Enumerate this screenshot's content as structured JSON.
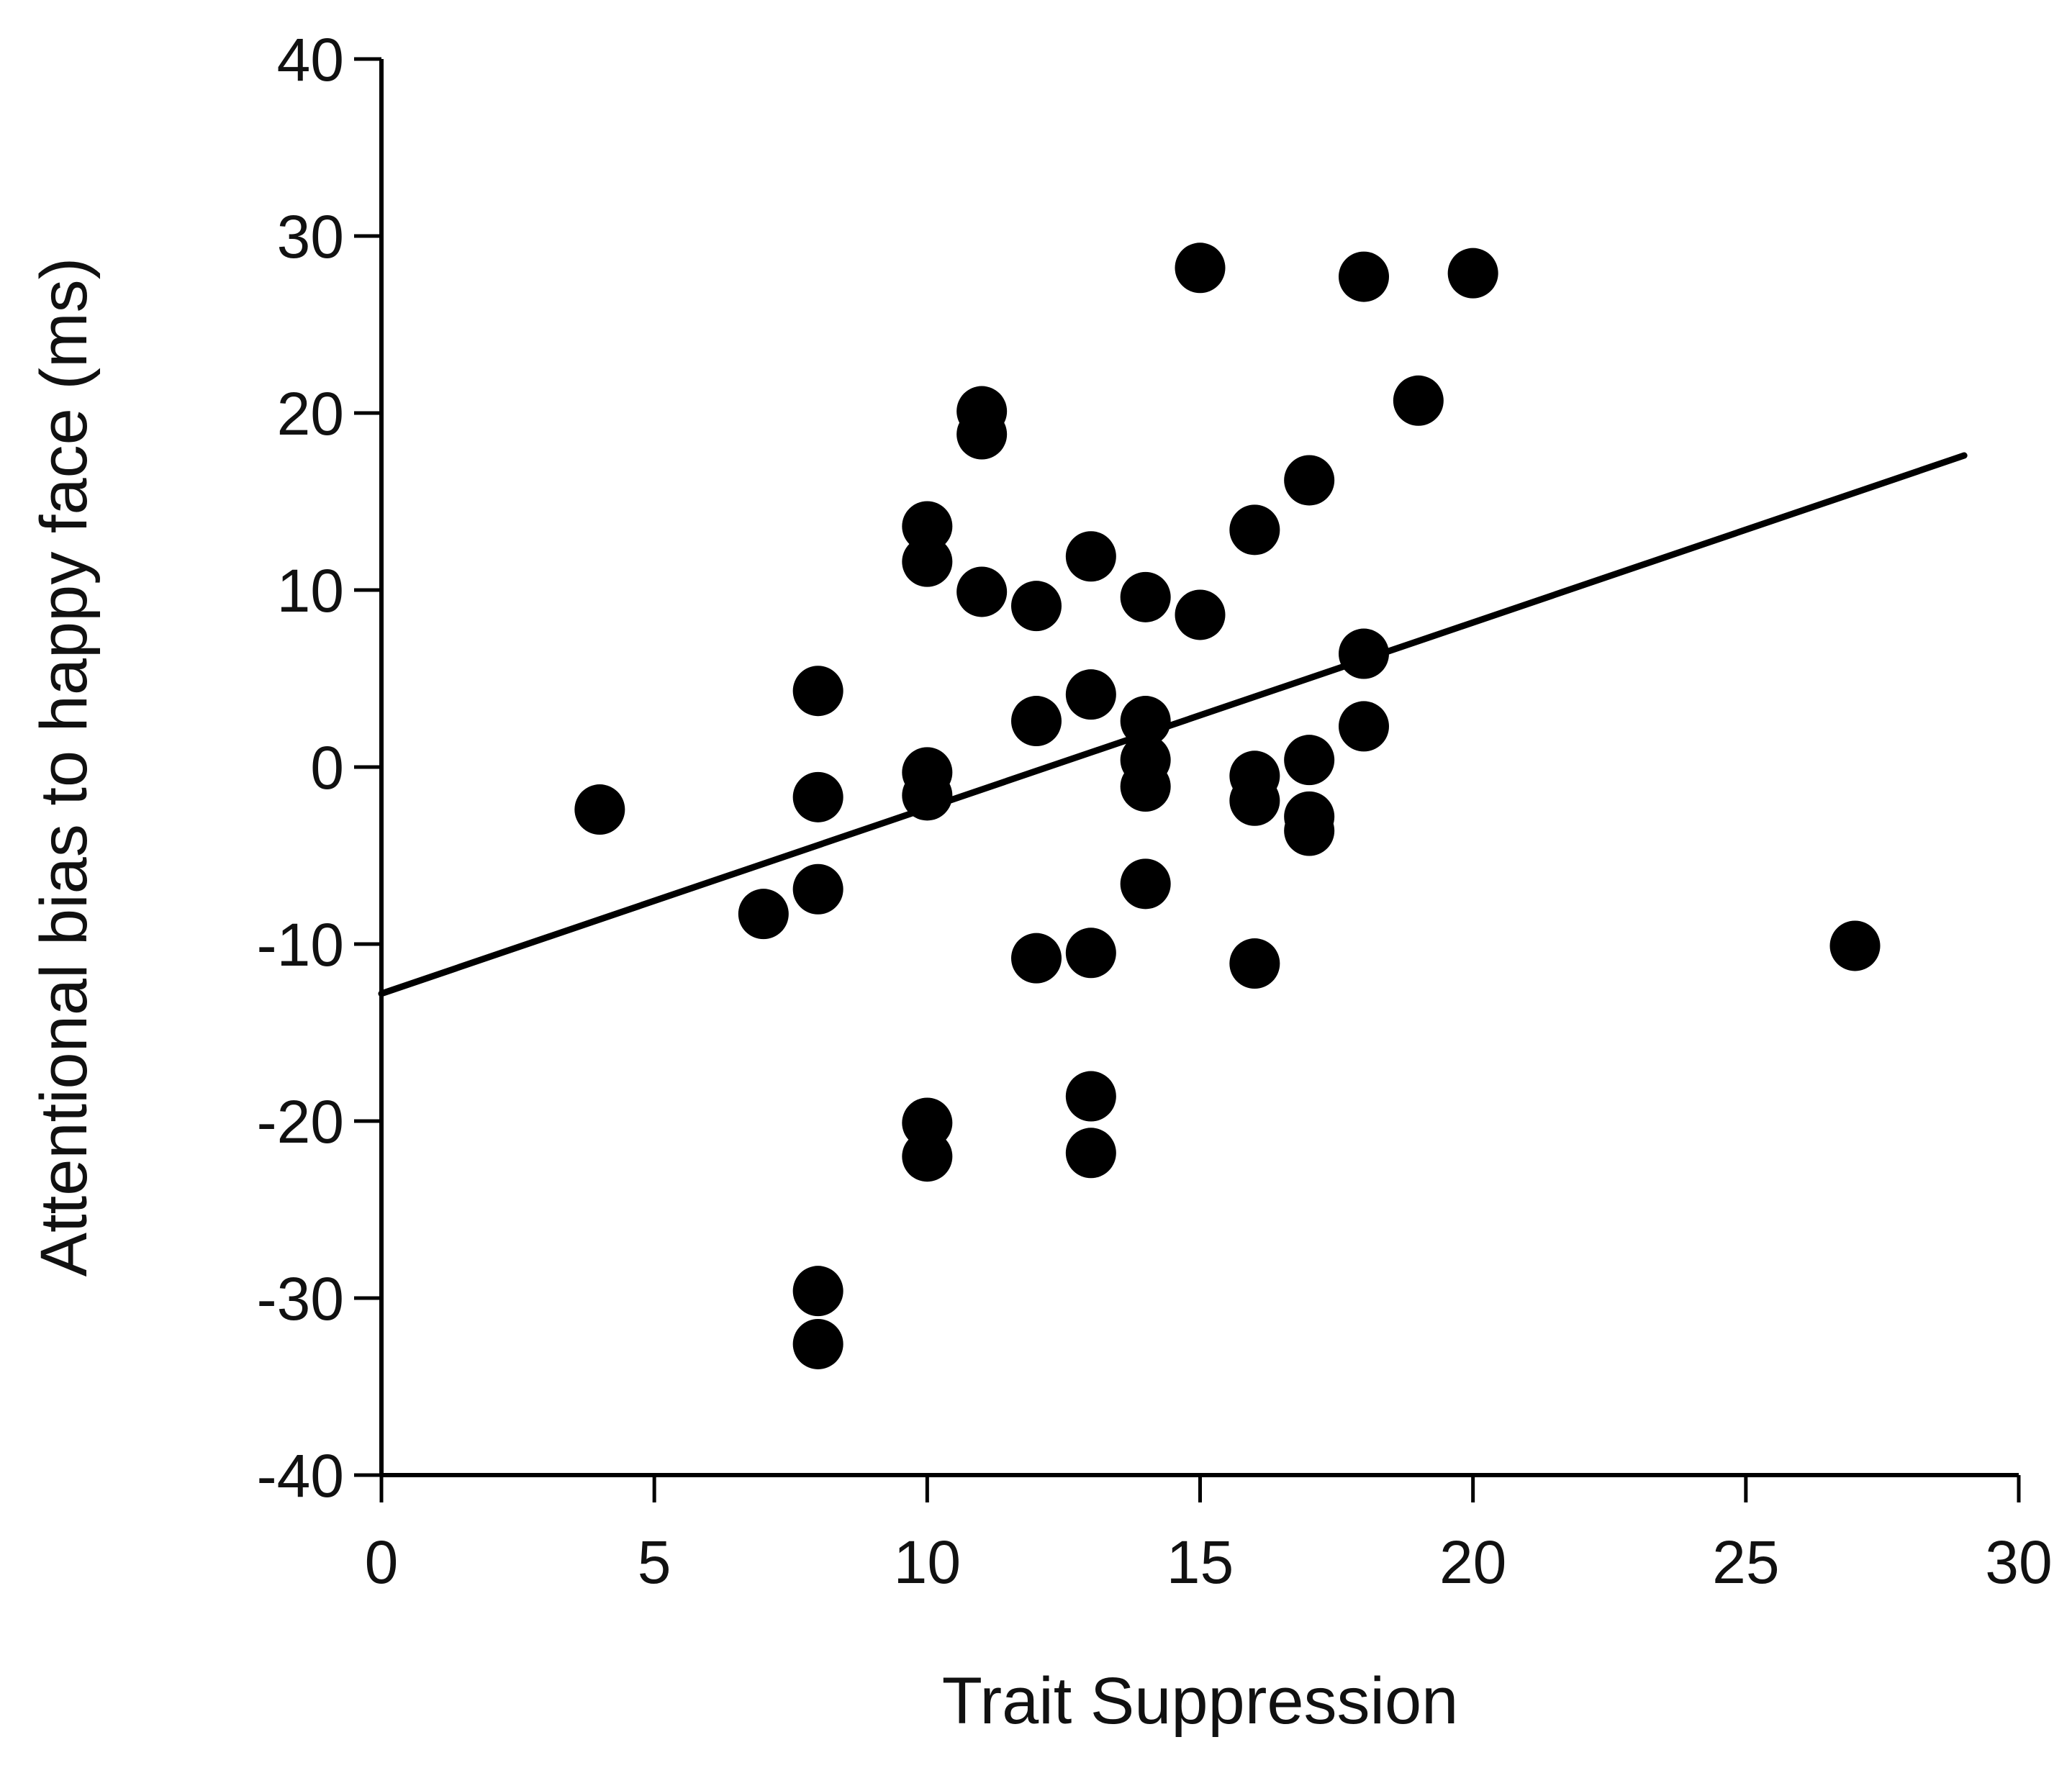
{
  "chart_data": {
    "type": "scatter",
    "title": "",
    "xlabel": "Trait Suppression",
    "ylabel": "Attentional bias to happy face (ms)",
    "xlim": [
      0,
      30
    ],
    "ylim": [
      -40,
      40
    ],
    "xticks": [
      0,
      5,
      10,
      15,
      20,
      25,
      30
    ],
    "yticks": [
      -40,
      -30,
      -20,
      -10,
      0,
      10,
      20,
      30,
      40
    ],
    "grid": false,
    "legend": "none",
    "marker_color": "#000000",
    "points": [
      {
        "x": 4,
        "y": -2.4
      },
      {
        "x": 7,
        "y": -8.3
      },
      {
        "x": 8,
        "y": 4.3
      },
      {
        "x": 8,
        "y": -1.7
      },
      {
        "x": 8,
        "y": -6.9
      },
      {
        "x": 8,
        "y": -29.6
      },
      {
        "x": 8,
        "y": -32.6
      },
      {
        "x": 10,
        "y": 13.6
      },
      {
        "x": 10,
        "y": 11.6
      },
      {
        "x": 10,
        "y": -0.3
      },
      {
        "x": 10,
        "y": -1.6
      },
      {
        "x": 10,
        "y": -20.1
      },
      {
        "x": 10,
        "y": -22.0
      },
      {
        "x": 11,
        "y": 20.1
      },
      {
        "x": 11,
        "y": 18.8
      },
      {
        "x": 11,
        "y": 9.9
      },
      {
        "x": 12,
        "y": 9.1
      },
      {
        "x": 12,
        "y": 2.6
      },
      {
        "x": 12,
        "y": -10.8
      },
      {
        "x": 13,
        "y": 11.9
      },
      {
        "x": 13,
        "y": 4.1
      },
      {
        "x": 13,
        "y": -10.5
      },
      {
        "x": 13,
        "y": -18.6
      },
      {
        "x": 13,
        "y": -21.8
      },
      {
        "x": 14,
        "y": 9.6
      },
      {
        "x": 14,
        "y": 2.6
      },
      {
        "x": 14,
        "y": 0.4
      },
      {
        "x": 14,
        "y": -1.1
      },
      {
        "x": 14,
        "y": -6.6
      },
      {
        "x": 15,
        "y": 28.2
      },
      {
        "x": 15,
        "y": 8.6
      },
      {
        "x": 16,
        "y": 13.4
      },
      {
        "x": 16,
        "y": -0.5
      },
      {
        "x": 16,
        "y": -1.9
      },
      {
        "x": 16,
        "y": -11.1
      },
      {
        "x": 17,
        "y": 16.2
      },
      {
        "x": 17,
        "y": 0.4
      },
      {
        "x": 17,
        "y": -2.8
      },
      {
        "x": 17,
        "y": -3.6
      },
      {
        "x": 18,
        "y": 27.7
      },
      {
        "x": 18,
        "y": 6.4
      },
      {
        "x": 18,
        "y": 2.3
      },
      {
        "x": 19,
        "y": 20.7
      },
      {
        "x": 20,
        "y": 27.9
      },
      {
        "x": 27,
        "y": -10.1
      }
    ],
    "trend_line": {
      "x1": 0,
      "y1": -12.8,
      "x2": 29,
      "y2": 17.6
    }
  }
}
